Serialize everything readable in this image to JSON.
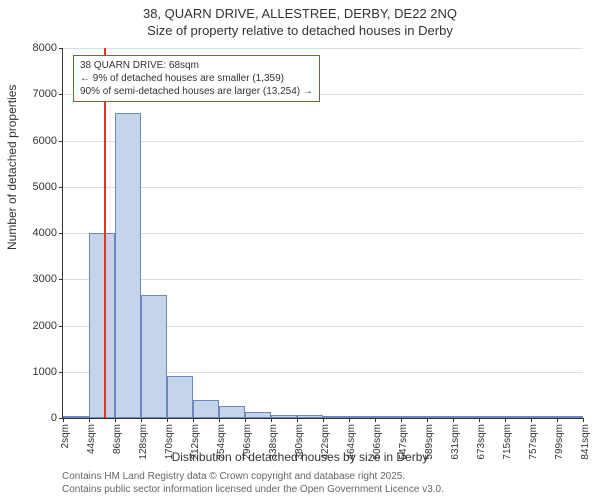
{
  "title_line1": "38, QUARN DRIVE, ALLESTREE, DERBY, DE22 2NQ",
  "title_line2": "Size of property relative to detached houses in Derby",
  "ylabel": "Number of detached properties",
  "xlabel": "Distribution of detached houses by size in Derby",
  "attribution_line1": "Contains HM Land Registry data © Crown copyright and database right 2025.",
  "attribution_line2": "Contains public sector information licensed under the Open Government Licence v3.0.",
  "histogram": {
    "type": "bar",
    "bin_width_sqm": 42,
    "bins_start": [
      2,
      44,
      86,
      128,
      170,
      212,
      254,
      296,
      338,
      380,
      422,
      464,
      506,
      547,
      589,
      631,
      673,
      715,
      757,
      799,
      841
    ],
    "values": [
      0,
      4000,
      6600,
      2650,
      900,
      400,
      250,
      120,
      70,
      55,
      40,
      25,
      20,
      15,
      15,
      10,
      8,
      5,
      3,
      2
    ],
    "bar_fill": "#c5d4ed",
    "bar_border": "#6d88b8",
    "ylim": [
      0,
      8000
    ],
    "ytick_step": 1000,
    "grid_color": "#dddddd",
    "axis_color": "#333333",
    "xtick_labels": [
      "2sqm",
      "44sqm",
      "86sqm",
      "128sqm",
      "170sqm",
      "212sqm",
      "254sqm",
      "296sqm",
      "338sqm",
      "380sqm",
      "422sqm",
      "464sqm",
      "506sqm",
      "547sqm",
      "589sqm",
      "631sqm",
      "673sqm",
      "715sqm",
      "757sqm",
      "799sqm",
      "841sqm"
    ]
  },
  "marker": {
    "value_sqm": 68,
    "color": "#d33"
  },
  "annotation": {
    "line1": "38 QUARN DRIVE: 68sqm",
    "line2": "← 9% of detached houses are smaller (1,359)",
    "line3": "90% of semi-detached houses are larger (13,254) →",
    "border_color": "#d33"
  }
}
